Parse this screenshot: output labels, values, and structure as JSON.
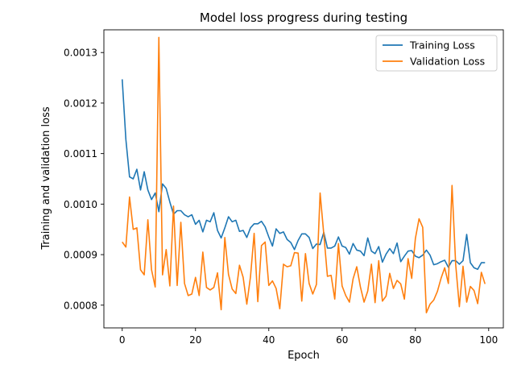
{
  "chart_data": {
    "type": "line",
    "title": "Model loss progress during testing",
    "xlabel": "Epoch",
    "ylabel": "Training and validation loss",
    "xlim": [
      -5,
      104
    ],
    "ylim": [
      0.000755,
      0.001345
    ],
    "xticks": [
      0,
      20,
      40,
      60,
      80,
      100
    ],
    "xtick_labels": [
      "0",
      "20",
      "40",
      "60",
      "80",
      "100"
    ],
    "yticks": [
      0.0008,
      0.0009,
      0.001,
      0.0011,
      0.0012,
      0.0013
    ],
    "ytick_labels": [
      "0.0008",
      "0.0009",
      "0.0010",
      "0.0011",
      "0.0012",
      "0.0013"
    ],
    "grid": false,
    "legend_position": "top-right",
    "x": [
      0,
      1,
      2,
      3,
      4,
      5,
      6,
      7,
      8,
      9,
      10,
      11,
      12,
      13,
      14,
      15,
      16,
      17,
      18,
      19,
      20,
      21,
      22,
      23,
      24,
      25,
      26,
      27,
      28,
      29,
      30,
      31,
      32,
      33,
      34,
      35,
      36,
      37,
      38,
      39,
      40,
      41,
      42,
      43,
      44,
      45,
      46,
      47,
      48,
      49,
      50,
      51,
      52,
      53,
      54,
      55,
      56,
      57,
      58,
      59,
      60,
      61,
      62,
      63,
      64,
      65,
      66,
      67,
      68,
      69,
      70,
      71,
      72,
      73,
      74,
      75,
      76,
      77,
      78,
      79,
      80,
      81,
      82,
      83,
      84,
      85,
      86,
      87,
      88,
      89,
      90,
      91,
      92,
      93,
      94,
      95,
      96,
      97,
      98,
      99
    ],
    "series": [
      {
        "name": "Training Loss",
        "color": "#1f77b4",
        "values": [
          0.001247,
          0.001128,
          0.001054,
          0.00105,
          0.001069,
          0.001028,
          0.001064,
          0.001028,
          0.001009,
          0.001022,
          0.000985,
          0.00104,
          0.001031,
          0.001004,
          0.00098,
          0.000987,
          0.000987,
          0.000979,
          0.000975,
          0.000979,
          0.00096,
          0.000968,
          0.000945,
          0.000968,
          0.000965,
          0.000983,
          0.000948,
          0.000933,
          0.000953,
          0.000975,
          0.000965,
          0.000968,
          0.000946,
          0.000948,
          0.000934,
          0.000953,
          0.000961,
          0.000961,
          0.000966,
          0.000955,
          0.000935,
          0.000917,
          0.000951,
          0.000942,
          0.000945,
          0.00093,
          0.000924,
          0.00091,
          0.000928,
          0.000941,
          0.000941,
          0.000934,
          0.000912,
          0.000921,
          0.00092,
          0.000944,
          0.000913,
          0.000913,
          0.000917,
          0.000935,
          0.000917,
          0.000914,
          0.000901,
          0.000922,
          0.000909,
          0.000907,
          0.000898,
          0.000933,
          0.000907,
          0.000902,
          0.000916,
          0.000885,
          0.000901,
          0.000912,
          0.000902,
          0.000923,
          0.000886,
          0.000897,
          0.000907,
          0.000908,
          0.000897,
          0.000894,
          0.000899,
          0.000909,
          0.000899,
          0.00088,
          0.000882,
          0.000886,
          0.000889,
          0.000875,
          0.000888,
          0.000888,
          0.000881,
          0.000888,
          0.00094,
          0.000884,
          0.000874,
          0.000871,
          0.000884,
          0.000884
        ]
      },
      {
        "name": "Validation Loss",
        "color": "#ff7f0e",
        "values": [
          0.000925,
          0.000915,
          0.001014,
          0.00095,
          0.000953,
          0.00087,
          0.00086,
          0.000969,
          0.00087,
          0.000836,
          0.00133,
          0.00086,
          0.00091,
          0.000838,
          0.000996,
          0.000839,
          0.000964,
          0.000843,
          0.000819,
          0.000822,
          0.000855,
          0.000819,
          0.000905,
          0.000835,
          0.00083,
          0.000835,
          0.000864,
          0.000791,
          0.000934,
          0.000861,
          0.000832,
          0.000823,
          0.000879,
          0.000855,
          0.000802,
          0.000856,
          0.000942,
          0.000807,
          0.000918,
          0.000925,
          0.000839,
          0.000848,
          0.000833,
          0.000793,
          0.000881,
          0.000876,
          0.000878,
          0.000904,
          0.000903,
          0.000808,
          0.000902,
          0.000843,
          0.000822,
          0.000841,
          0.001022,
          0.000941,
          0.000857,
          0.000859,
          0.000812,
          0.000922,
          0.000838,
          0.000819,
          0.000806,
          0.000852,
          0.000876,
          0.000836,
          0.000806,
          0.000828,
          0.000881,
          0.000805,
          0.000888,
          0.000808,
          0.000818,
          0.000863,
          0.000833,
          0.000849,
          0.000842,
          0.000812,
          0.000892,
          0.000853,
          0.000932,
          0.000971,
          0.000954,
          0.000785,
          0.000802,
          0.00081,
          0.000827,
          0.000853,
          0.000874,
          0.000843,
          0.001037,
          0.00088,
          0.000797,
          0.000877,
          0.000806,
          0.000837,
          0.000829,
          0.000803,
          0.000865,
          0.000842
        ]
      }
    ]
  }
}
